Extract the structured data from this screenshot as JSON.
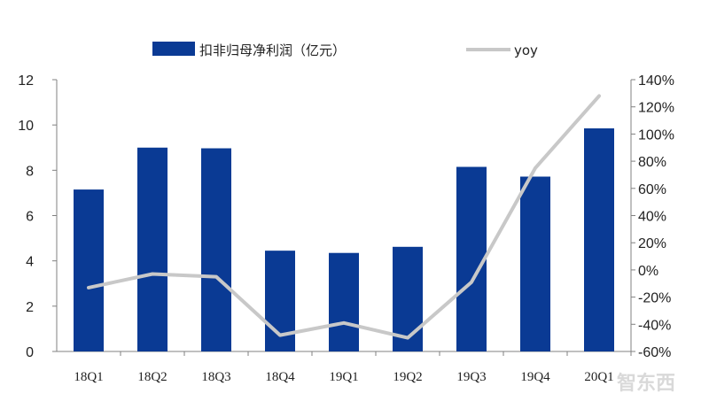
{
  "chart_data": {
    "type": "bar",
    "categories": [
      "18Q1",
      "18Q2",
      "18Q3",
      "18Q4",
      "19Q1",
      "19Q2",
      "19Q3",
      "19Q4",
      "20Q1"
    ],
    "series": [
      {
        "name": "扣非归母净利润（亿元）",
        "type": "bar",
        "axis": "left",
        "values": [
          7.15,
          9.0,
          8.97,
          4.45,
          4.35,
          4.62,
          8.15,
          7.72,
          9.85
        ]
      },
      {
        "name": "yoy",
        "type": "line",
        "axis": "right",
        "values": [
          -13,
          -3,
          -5,
          -48,
          -39,
          -50,
          -9,
          75,
          128
        ]
      }
    ],
    "y_left": {
      "ylim": [
        0,
        12
      ],
      "ticks": [
        "0",
        "2",
        "4",
        "6",
        "8",
        "10",
        "12"
      ]
    },
    "y_right": {
      "ylim": [
        -60,
        140
      ],
      "ticks": [
        "-60%",
        "-40%",
        "-20%",
        "0%",
        "20%",
        "40%",
        "60%",
        "80%",
        "100%",
        "120%",
        "140%"
      ]
    },
    "legend_position": "top",
    "grid": false,
    "colors": {
      "bars": "#0a3a94",
      "line": "#c8c8c8",
      "axis": "#808080"
    }
  },
  "watermark": "智东西"
}
